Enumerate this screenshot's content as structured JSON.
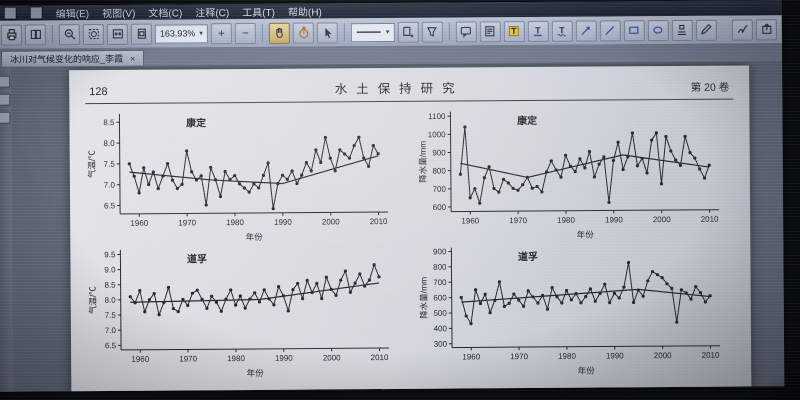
{
  "menubar": {
    "items": [
      {
        "label": "编辑(E)"
      },
      {
        "label": "视图(V)"
      },
      {
        "label": "文档(C)"
      },
      {
        "label": "注释(C)"
      },
      {
        "label": "工具(T)"
      },
      {
        "label": "帮助(H)"
      }
    ]
  },
  "toolbar": {
    "zoom_value": "163.93%",
    "dropdown_caret": "▾",
    "zoom_in_label": "+",
    "zoom_out_label": "−"
  },
  "tabbar": {
    "title": "冰川对气候变化的响应_李霞",
    "close_label": "×"
  },
  "page": {
    "number": "128",
    "journal": "水土保持研究",
    "volume": "第 20 卷"
  },
  "chart_data": [
    {
      "type": "line",
      "title": "康定",
      "ylabel": "气温/℃",
      "xlabel": "年份",
      "start_year": 1958,
      "xlim": [
        1956,
        2012
      ],
      "ylim": [
        6.3,
        8.7
      ],
      "xticks": [
        1960,
        1970,
        1980,
        1990,
        2000,
        2010
      ],
      "yticks": [
        6.5,
        7.0,
        7.5,
        8.0,
        8.5
      ],
      "ytick_labels": [
        "6.5",
        "7.0",
        "7.5",
        "8.0",
        "8.5"
      ],
      "grid": false,
      "values": [
        7.5,
        7.2,
        6.8,
        7.4,
        7.0,
        7.3,
        6.9,
        7.2,
        7.5,
        7.1,
        6.9,
        7.0,
        7.8,
        7.3,
        7.1,
        7.2,
        6.5,
        7.4,
        7.1,
        6.7,
        7.3,
        7.1,
        7.2,
        7.0,
        6.9,
        6.8,
        7.0,
        6.9,
        7.2,
        7.5,
        6.4,
        7.0,
        7.2,
        7.1,
        7.3,
        7.0,
        7.2,
        7.5,
        7.3,
        7.8,
        7.5,
        8.1,
        7.6,
        7.3,
        7.8,
        7.7,
        7.6,
        7.9,
        8.1,
        7.6,
        7.4,
        7.9,
        7.7
      ],
      "trend": {
        "x": [
          1958,
          1975,
          1990,
          2010
        ],
        "y": [
          7.3,
          7.1,
          7.0,
          7.65
        ]
      }
    },
    {
      "type": "line",
      "title": "康定",
      "ylabel": "降水量/mm",
      "xlabel": "年份",
      "start_year": 1958,
      "xlim": [
        1956,
        2012
      ],
      "ylim": [
        575,
        1125
      ],
      "xticks": [
        1960,
        1970,
        1980,
        1990,
        2000,
        2010
      ],
      "yticks": [
        600,
        700,
        800,
        900,
        1000,
        1100
      ],
      "ytick_labels": [
        "600",
        "700",
        "800",
        "900",
        "1000",
        "1100"
      ],
      "grid": false,
      "values": [
        780,
        1040,
        650,
        700,
        620,
        760,
        820,
        700,
        680,
        750,
        730,
        700,
        690,
        720,
        760,
        700,
        710,
        680,
        790,
        850,
        800,
        760,
        880,
        820,
        790,
        860,
        810,
        900,
        760,
        830,
        870,
        620,
        850,
        950,
        800,
        870,
        1000,
        820,
        860,
        780,
        960,
        1000,
        720,
        980,
        900,
        850,
        820,
        980,
        890,
        860,
        800,
        750,
        820
      ],
      "trend": {
        "x": [
          1958,
          1972,
          1992,
          2010
        ],
        "y": [
          840,
          760,
          880,
          810
        ]
      }
    },
    {
      "type": "line",
      "title": "道孚",
      "ylabel": "气温/℃",
      "xlabel": "年份",
      "start_year": 1958,
      "xlim": [
        1956,
        2012
      ],
      "ylim": [
        6.35,
        9.65
      ],
      "xticks": [
        1960,
        1970,
        1980,
        1990,
        2000,
        2010
      ],
      "yticks": [
        6.5,
        7.0,
        7.5,
        8.0,
        8.5,
        9.0,
        9.5
      ],
      "ytick_labels": [
        "6.5",
        "7.0",
        "7.5",
        "8.0",
        "8.5",
        "9.0",
        "9.5"
      ],
      "grid": false,
      "values": [
        8.1,
        7.9,
        8.3,
        7.6,
        8.0,
        8.2,
        7.5,
        7.9,
        8.4,
        7.7,
        7.6,
        8.0,
        7.8,
        8.2,
        8.3,
        8.0,
        7.7,
        8.1,
        7.9,
        7.6,
        8.0,
        8.3,
        7.8,
        8.1,
        7.7,
        8.0,
        8.2,
        7.9,
        8.3,
        8.0,
        7.8,
        8.4,
        8.1,
        7.6,
        8.3,
        8.5,
        8.0,
        8.6,
        8.2,
        8.5,
        8.0,
        8.7,
        8.3,
        8.1,
        8.6,
        8.9,
        8.2,
        8.5,
        8.8,
        8.4,
        8.6,
        9.1,
        8.7
      ],
      "trend": {
        "x": [
          1958,
          1985,
          2010
        ],
        "y": [
          7.92,
          7.98,
          8.5
        ]
      }
    },
    {
      "type": "line",
      "title": "道孚",
      "ylabel": "降水量/mm",
      "xlabel": "年份",
      "start_year": 1958,
      "xlim": [
        1956,
        2012
      ],
      "ylim": [
        275,
        925
      ],
      "xticks": [
        1960,
        1970,
        1980,
        1990,
        2000,
        2010
      ],
      "yticks": [
        300,
        400,
        500,
        600,
        700,
        800,
        900
      ],
      "ytick_labels": [
        "300",
        "400",
        "500",
        "600",
        "700",
        "800",
        "900"
      ],
      "grid": false,
      "values": [
        600,
        480,
        430,
        650,
        560,
        620,
        500,
        580,
        700,
        540,
        560,
        620,
        580,
        540,
        640,
        600,
        560,
        610,
        520,
        660,
        600,
        560,
        640,
        580,
        620,
        560,
        600,
        650,
        570,
        620,
        680,
        560,
        620,
        590,
        660,
        820,
        560,
        640,
        600,
        700,
        760,
        740,
        720,
        680,
        650,
        430,
        640,
        620,
        580,
        660,
        620,
        560,
        600
      ],
      "trend": {
        "x": [
          1958,
          1995,
          2010
        ],
        "y": [
          570,
          645,
          595
        ]
      }
    }
  ]
}
